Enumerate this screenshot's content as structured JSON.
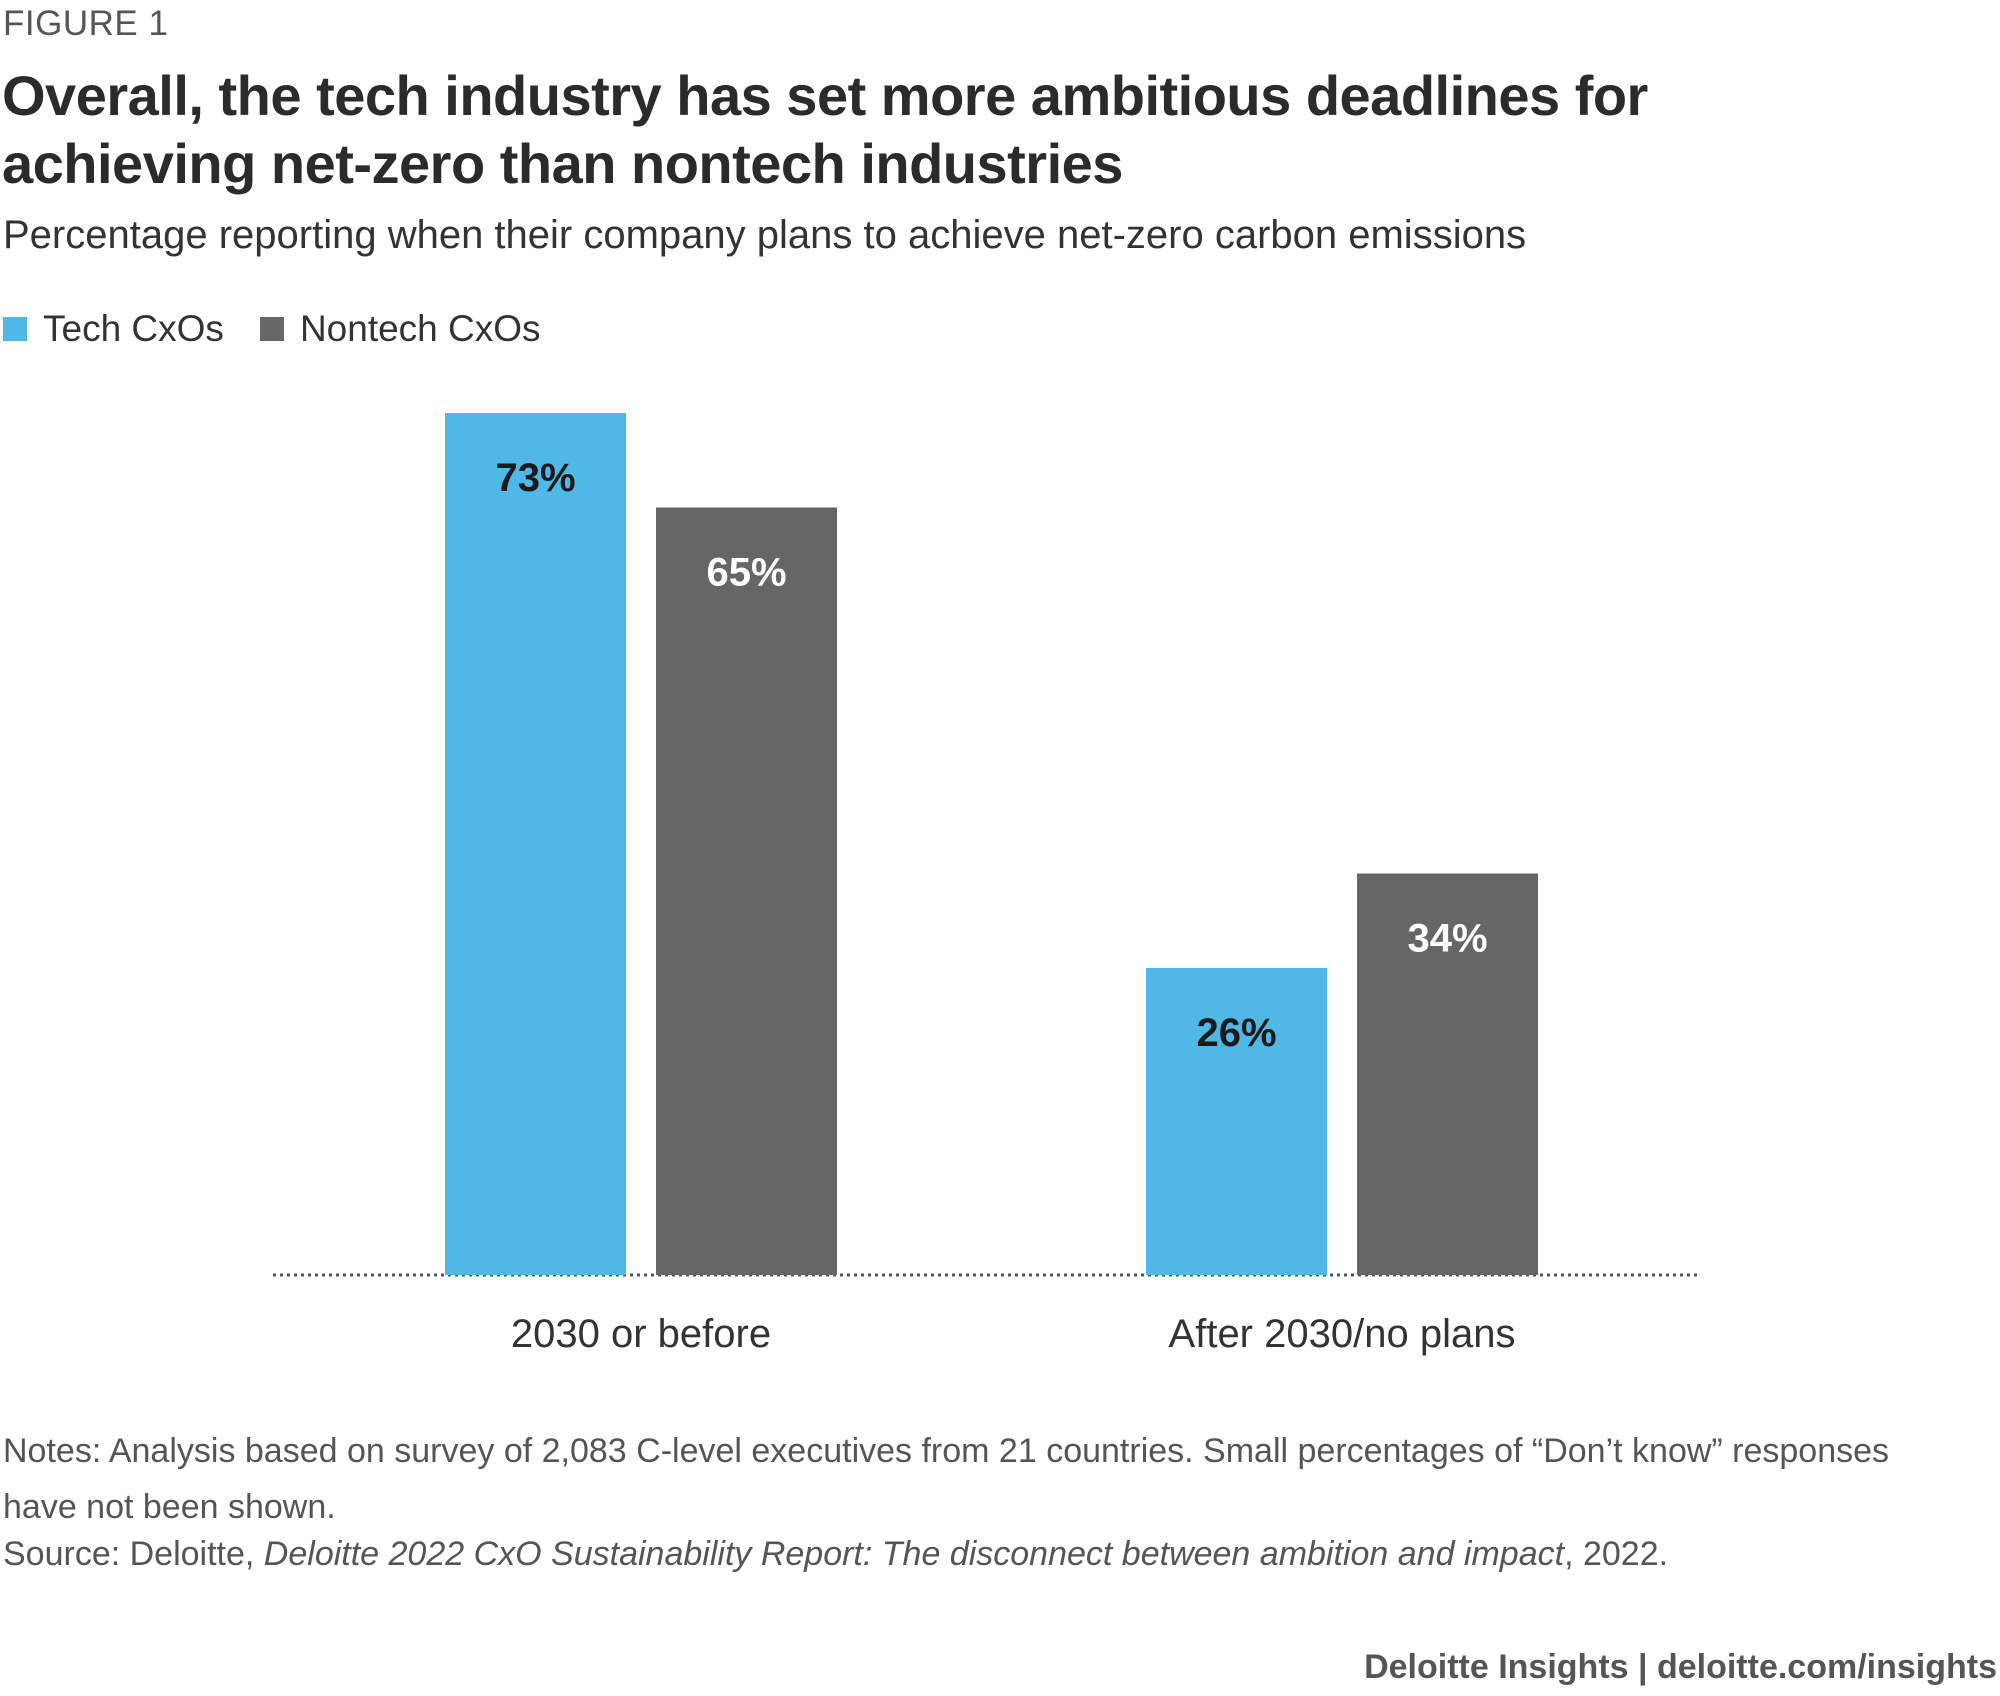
{
  "figure_label": "FIGURE 1",
  "title": "Overall, the tech industry has set more ambitious deadlines for achieving net-zero than nontech industries",
  "subtitle": "Percentage reporting when their company plans to achieve net-zero carbon emissions",
  "colors": {
    "tech": "#4fb8e7",
    "nontech": "#666666",
    "label_dark": "#1a1a1a",
    "label_light": "#ffffff",
    "baseline": "#555555"
  },
  "chart_data": {
    "type": "bar",
    "categories": [
      "2030 or before",
      "After 2030/no plans"
    ],
    "series": [
      {
        "name": "Tech CxOs",
        "values": [
          73,
          26
        ],
        "labels": [
          "73%",
          "26%"
        ]
      },
      {
        "name": "Nontech CxOs",
        "values": [
          65,
          34
        ],
        "labels": [
          "65%",
          "34%"
        ]
      }
    ],
    "title": "Overall, the tech industry has set more ambitious deadlines for achieving net-zero than nontech industries",
    "xlabel": "",
    "ylabel": "",
    "ylim": [
      0,
      73
    ],
    "legend": "top-left",
    "grid": false
  },
  "notes": "Notes: Analysis based on survey of 2,083 C-level executives from 21 countries. Small percentages of “Don’t know” responses have not been shown.",
  "source": {
    "prefix": "Source: Deloitte, ",
    "italic": "Deloitte 2022 CxO Sustainability Report: The disconnect between ambition and impact",
    "suffix": ", 2022."
  },
  "footer": "Deloitte Insights | deloitte.com/insights"
}
